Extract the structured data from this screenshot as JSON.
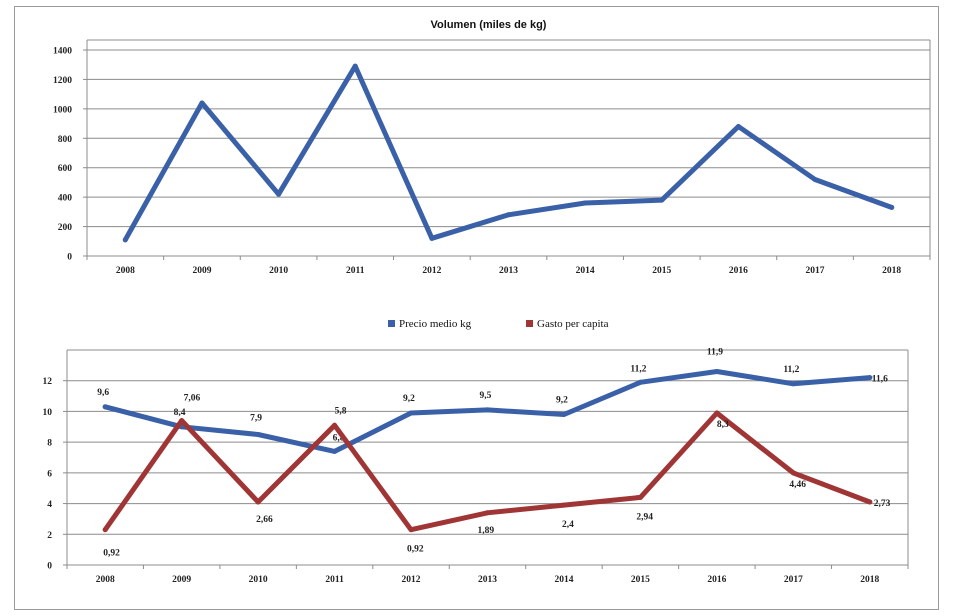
{
  "colors": {
    "blue_series": "#3a61a8",
    "red_series": "#a03535",
    "grid": "#8c8c8c",
    "axis": "#8c8c8c"
  },
  "chart_data": [
    {
      "type": "line",
      "title": "Volumen (miles de kg)",
      "xlabel": "",
      "ylabel": "",
      "categories": [
        "2008",
        "2009",
        "2010",
        "2011",
        "2012",
        "2013",
        "2014",
        "2015",
        "2016",
        "2017",
        "2018"
      ],
      "yticks": [
        0,
        200,
        400,
        600,
        800,
        1000,
        1200,
        1400
      ],
      "ylim": [
        0,
        1400
      ],
      "grid": true,
      "series": [
        {
          "values": [
            110,
            1040,
            420,
            1290,
            120,
            280,
            360,
            380,
            880,
            520,
            330
          ],
          "color": "#3a61a8"
        }
      ]
    },
    {
      "type": "line",
      "title": "",
      "xlabel": "",
      "ylabel": "",
      "categories": [
        "2008",
        "2009",
        "2010",
        "2011",
        "2012",
        "2013",
        "2014",
        "2015",
        "2016",
        "2017",
        "2018"
      ],
      "yticks": [
        0,
        2,
        4,
        6,
        8,
        10,
        12
      ],
      "ylim": [
        0,
        14
      ],
      "grid": true,
      "legend_position": "top-center",
      "series": [
        {
          "name": "Precio medio kg",
          "color": "#3a61a8",
          "values": [
            10.3,
            9.0,
            8.5,
            7.4,
            9.9,
            10.1,
            9.8,
            11.9,
            12.6,
            11.8,
            12.2
          ],
          "labels": [
            "9,6",
            "8,4",
            "7,9",
            "6,8",
            "9,2",
            "9,5",
            "9,2",
            "11,2",
            "11,9",
            "11,2",
            "11,6"
          ]
        },
        {
          "name": "Gasto per capita",
          "color": "#a03535",
          "values": [
            2.3,
            9.4,
            4.1,
            9.1,
            2.3,
            3.4,
            3.9,
            4.4,
            9.9,
            6.0,
            4.1
          ],
          "labels": [
            "0,92",
            "7,06",
            "2,66",
            "5,8",
            "0,92",
            "1,89",
            "2,4",
            "2,94",
            "8,3",
            "4,46",
            "2,73"
          ]
        }
      ]
    }
  ]
}
